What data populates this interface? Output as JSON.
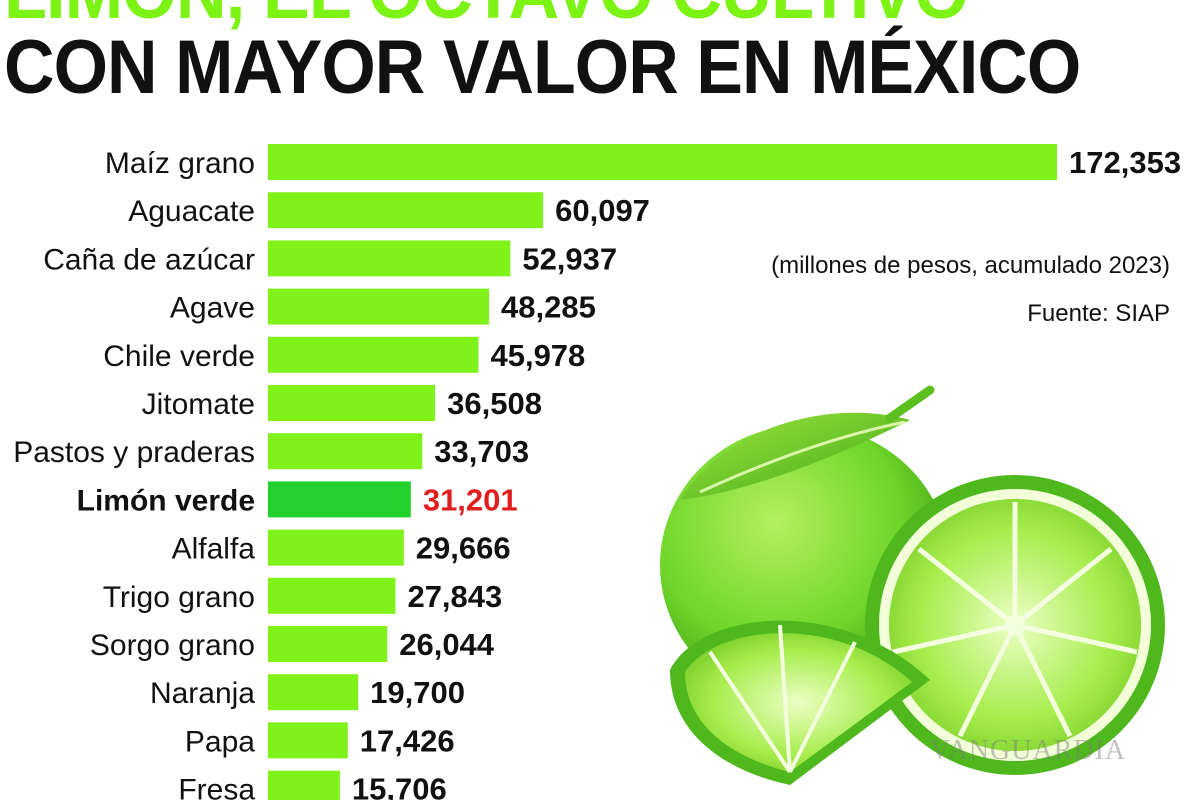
{
  "header": {
    "title_line1": "LIMÓN, EL OCTAVO CULTIVO",
    "title_line2": "CON MAYOR VALOR EN MÉXICO"
  },
  "notes": {
    "units": "(millones de pesos, acumulado 2023)",
    "source": "Fuente: SIAP",
    "watermark": "VANGUARDIA"
  },
  "colors": {
    "bar": "#7ff21a",
    "bar_highlight": "#22d12e",
    "highlight_value": "#e01e1e",
    "lime": "#8be63a"
  },
  "chart_data": {
    "type": "bar",
    "orientation": "horizontal",
    "title": "LIMÓN, EL OCTAVO CULTIVO CON MAYOR VALOR EN MÉXICO",
    "subtitle": "(millones de pesos, acumulado 2023)",
    "source": "Fuente: SIAP",
    "categories": [
      "Maíz grano",
      "Aguacate",
      "Caña de azúcar",
      "Agave",
      "Chile verde",
      "Jitomate",
      "Pastos y praderas",
      "Limón verde",
      "Alfalfa",
      "Trigo grano",
      "Sorgo grano",
      "Naranja",
      "Papa",
      "Fresa"
    ],
    "values": [
      172353,
      60097,
      52937,
      48285,
      45978,
      36508,
      33703,
      31201,
      29666,
      27843,
      26044,
      19700,
      17426,
      15706
    ],
    "value_labels": [
      "172,353",
      "60,097",
      "52,937",
      "48,285",
      "45,978",
      "36,508",
      "33,703",
      "31,201",
      "29,666",
      "27,843",
      "26,044",
      "19,700",
      "17,426",
      "15,706"
    ],
    "highlight": "Limón verde",
    "xlim": [
      0,
      172353
    ],
    "grid": false,
    "legend": "none"
  }
}
